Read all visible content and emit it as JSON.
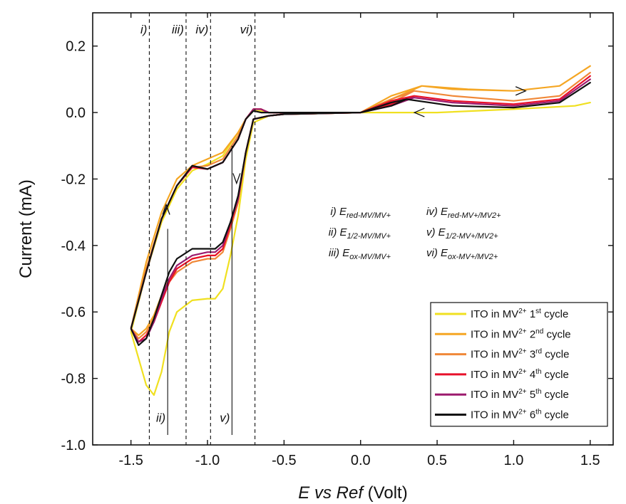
{
  "chart_data": {
    "type": "line",
    "xlabel": {
      "italic": "E vs Ref",
      "normal": " (Volt)"
    },
    "ylabel": "Current (mA)",
    "xlim": [
      -1.75,
      1.65
    ],
    "ylim": [
      -1.0,
      0.3
    ],
    "xticks": [
      -1.5,
      -1.0,
      -0.5,
      0.0,
      0.5,
      1.0,
      1.5
    ],
    "xtick_labels": [
      "-1.5",
      "-1.0",
      "-0.5",
      "0.0",
      "0.5",
      "1.0",
      "1.5"
    ],
    "yticks": [
      -1.0,
      -0.8,
      -0.6,
      -0.4,
      -0.2,
      0.0,
      0.2
    ],
    "ytick_labels": [
      "-1.0",
      "-0.8",
      "-0.6",
      "-0.4",
      "-0.2",
      "0.0",
      "0.2"
    ],
    "grid": false,
    "legend_position": "bottom-right",
    "series": [
      {
        "name": "ITO in MV2+ 1st cycle",
        "legend": {
          "pre": "ITO in MV",
          "sup1": "2+",
          "mid": " 1",
          "sup2": "st",
          "post": " cycle"
        },
        "color": "#f0e020",
        "x": [
          -1.5,
          -1.45,
          -1.4,
          -1.35,
          -1.3,
          -1.25,
          -1.2,
          -1.1,
          -1.0,
          -0.95,
          -0.9,
          -0.85,
          -0.8,
          -0.75,
          -0.7,
          -0.6,
          -0.5,
          0.0,
          0.5,
          1.0,
          1.4,
          1.5,
          1.4,
          1.0,
          0.5,
          0.0,
          -0.5,
          -0.6,
          -0.65,
          -0.7,
          -0.75,
          -0.8,
          -0.9,
          -1.0,
          -1.1,
          -1.2,
          -1.3,
          -1.4,
          -1.5
        ],
        "y": [
          -0.66,
          -0.74,
          -0.82,
          -0.85,
          -0.78,
          -0.66,
          -0.6,
          -0.565,
          -0.56,
          -0.56,
          -0.53,
          -0.43,
          -0.31,
          -0.14,
          -0.03,
          -0.01,
          -0.005,
          0.0,
          0.0,
          0.01,
          0.02,
          0.03,
          0.02,
          0.01,
          0.0,
          0.0,
          0.0,
          0.0,
          0.005,
          0.005,
          -0.02,
          -0.06,
          -0.13,
          -0.155,
          -0.175,
          -0.23,
          -0.33,
          -0.48,
          -0.66
        ]
      },
      {
        "name": "ITO in MV2+ 2nd cycle",
        "legend": {
          "pre": "ITO in MV",
          "sup1": "2+",
          "mid": " 2",
          "sup2": "nd",
          "post": " cycle"
        },
        "color": "#f5a623",
        "x": [
          -1.5,
          -1.45,
          -1.4,
          -1.35,
          -1.3,
          -1.25,
          -1.2,
          -1.1,
          -1.0,
          -0.95,
          -0.9,
          -0.85,
          -0.8,
          -0.75,
          -0.7,
          -0.6,
          -0.5,
          0.0,
          0.2,
          0.4,
          0.7,
          1.0,
          1.3,
          1.5,
          1.3,
          1.0,
          0.6,
          0.4,
          0.2,
          0.0,
          -0.5,
          -0.6,
          -0.65,
          -0.7,
          -0.75,
          -0.8,
          -0.9,
          -1.0,
          -1.1,
          -1.2,
          -1.3,
          -1.4,
          -1.5
        ],
        "y": [
          -0.65,
          -0.67,
          -0.65,
          -0.61,
          -0.55,
          -0.5,
          -0.47,
          -0.44,
          -0.43,
          -0.43,
          -0.41,
          -0.35,
          -0.27,
          -0.12,
          -0.02,
          -0.01,
          -0.005,
          0.0,
          0.05,
          0.08,
          0.07,
          0.065,
          0.08,
          0.14,
          0.08,
          0.065,
          0.07,
          0.08,
          0.04,
          0.0,
          0.0,
          0.0,
          0.01,
          0.01,
          -0.02,
          -0.06,
          -0.12,
          -0.14,
          -0.16,
          -0.2,
          -0.3,
          -0.45,
          -0.65
        ]
      },
      {
        "name": "ITO in MV2+ 3rd cycle",
        "legend": {
          "pre": "ITO in MV",
          "sup1": "2+",
          "mid": " 3",
          "sup2": "rd",
          "post": " cycle"
        },
        "color": "#f08838",
        "x": [
          -1.5,
          -1.45,
          -1.4,
          -1.35,
          -1.3,
          -1.25,
          -1.2,
          -1.1,
          -1.0,
          -0.95,
          -0.9,
          -0.85,
          -0.8,
          -0.75,
          -0.7,
          -0.6,
          -0.5,
          0.0,
          0.2,
          0.35,
          0.6,
          1.0,
          1.3,
          1.5,
          1.3,
          1.0,
          0.6,
          0.35,
          0.2,
          0.0,
          -0.5,
          -0.6,
          -0.65,
          -0.7,
          -0.75,
          -0.8,
          -0.9,
          -1.0,
          -1.1,
          -1.2,
          -1.3,
          -1.4,
          -1.5
        ],
        "y": [
          -0.65,
          -0.68,
          -0.66,
          -0.62,
          -0.56,
          -0.51,
          -0.48,
          -0.45,
          -0.44,
          -0.44,
          -0.42,
          -0.35,
          -0.27,
          -0.12,
          -0.02,
          -0.01,
          -0.005,
          0.0,
          0.04,
          0.065,
          0.05,
          0.035,
          0.05,
          0.12,
          0.05,
          0.035,
          0.05,
          0.065,
          0.03,
          0.0,
          0.0,
          0.0,
          0.01,
          0.01,
          -0.02,
          -0.07,
          -0.14,
          -0.16,
          -0.165,
          -0.22,
          -0.32,
          -0.47,
          -0.65
        ]
      },
      {
        "name": "ITO in MV2+ 4th cycle",
        "legend": {
          "pre": "ITO in MV",
          "sup1": "2+",
          "mid": " 4",
          "sup2": "th",
          "post": " cycle"
        },
        "color": "#e8102a",
        "x": [
          -1.5,
          -1.45,
          -1.4,
          -1.35,
          -1.3,
          -1.25,
          -1.2,
          -1.1,
          -1.0,
          -0.95,
          -0.9,
          -0.85,
          -0.8,
          -0.75,
          -0.7,
          -0.6,
          -0.5,
          0.0,
          0.2,
          0.35,
          0.6,
          1.0,
          1.3,
          1.5,
          1.3,
          1.0,
          0.6,
          0.35,
          0.2,
          0.0,
          -0.5,
          -0.6,
          -0.65,
          -0.7,
          -0.75,
          -0.8,
          -0.9,
          -1.0,
          -1.1,
          -1.2,
          -1.3,
          -1.4,
          -1.5
        ],
        "y": [
          -0.65,
          -0.69,
          -0.67,
          -0.63,
          -0.57,
          -0.51,
          -0.47,
          -0.44,
          -0.43,
          -0.43,
          -0.41,
          -0.34,
          -0.26,
          -0.12,
          -0.02,
          -0.01,
          -0.005,
          0.0,
          0.035,
          0.05,
          0.035,
          0.025,
          0.04,
          0.11,
          0.04,
          0.025,
          0.035,
          0.05,
          0.025,
          0.0,
          0.0,
          0.0,
          0.01,
          0.01,
          -0.02,
          -0.08,
          -0.15,
          -0.17,
          -0.165,
          -0.22,
          -0.32,
          -0.48,
          -0.65
        ]
      },
      {
        "name": "ITO in MV2+ 5th cycle",
        "legend": {
          "pre": "ITO in MV",
          "sup1": "2+",
          "mid": " 5",
          "sup2": "th",
          "post": " cycle"
        },
        "color": "#9c1a6e",
        "x": [
          -1.5,
          -1.45,
          -1.4,
          -1.35,
          -1.3,
          -1.25,
          -1.2,
          -1.1,
          -1.0,
          -0.95,
          -0.9,
          -0.85,
          -0.8,
          -0.75,
          -0.7,
          -0.6,
          -0.5,
          0.0,
          0.2,
          0.35,
          0.6,
          1.0,
          1.3,
          1.5,
          1.3,
          1.0,
          0.6,
          0.35,
          0.2,
          0.0,
          -0.5,
          -0.6,
          -0.65,
          -0.7,
          -0.75,
          -0.8,
          -0.9,
          -1.0,
          -1.1,
          -1.2,
          -1.3,
          -1.4,
          -1.5
        ],
        "y": [
          -0.65,
          -0.69,
          -0.68,
          -0.63,
          -0.56,
          -0.5,
          -0.46,
          -0.43,
          -0.42,
          -0.42,
          -0.4,
          -0.33,
          -0.26,
          -0.12,
          -0.02,
          -0.01,
          -0.005,
          0.0,
          0.03,
          0.045,
          0.03,
          0.02,
          0.035,
          0.1,
          0.035,
          0.02,
          0.03,
          0.045,
          0.02,
          0.0,
          0.0,
          0.0,
          0.01,
          0.01,
          -0.02,
          -0.08,
          -0.15,
          -0.17,
          -0.16,
          -0.22,
          -0.32,
          -0.48,
          -0.65
        ]
      },
      {
        "name": "ITO in MV2+ 6th cycle",
        "legend": {
          "pre": "ITO in MV",
          "sup1": "2+",
          "mid": " 6",
          "sup2": "th",
          "post": " cycle"
        },
        "color": "#111111",
        "x": [
          -1.5,
          -1.45,
          -1.4,
          -1.35,
          -1.3,
          -1.25,
          -1.2,
          -1.1,
          -1.0,
          -0.95,
          -0.9,
          -0.85,
          -0.8,
          -0.75,
          -0.7,
          -0.6,
          -0.5,
          0.0,
          0.2,
          0.3,
          0.6,
          1.0,
          1.3,
          1.5,
          1.3,
          1.0,
          0.6,
          0.3,
          0.2,
          0.0,
          -0.5,
          -0.6,
          -0.65,
          -0.7,
          -0.75,
          -0.8,
          -0.9,
          -1.0,
          -1.1,
          -1.2,
          -1.3,
          -1.4,
          -1.5
        ],
        "y": [
          -0.65,
          -0.7,
          -0.68,
          -0.62,
          -0.55,
          -0.48,
          -0.44,
          -0.41,
          -0.41,
          -0.41,
          -0.39,
          -0.33,
          -0.25,
          -0.12,
          -0.02,
          -0.01,
          -0.005,
          0.0,
          0.03,
          0.04,
          0.02,
          0.015,
          0.03,
          0.09,
          0.03,
          0.015,
          0.02,
          0.04,
          0.02,
          0.0,
          0.0,
          0.0,
          0.0,
          0.005,
          -0.02,
          -0.08,
          -0.15,
          -0.17,
          -0.16,
          -0.22,
          -0.32,
          -0.48,
          -0.65
        ]
      }
    ],
    "vlines": [
      {
        "x": -1.38,
        "label": "i)",
        "label_pos": "top"
      },
      {
        "x": -1.14,
        "label": "iii)",
        "label_pos": "top"
      },
      {
        "x": -0.98,
        "label": "iv)",
        "label_pos": "top"
      },
      {
        "x": -0.69,
        "label": "vi)",
        "label_pos": "top"
      }
    ],
    "solid_lines": [
      {
        "x": -1.26,
        "y0": -0.97,
        "y1": -0.35,
        "label": "ii)"
      },
      {
        "x": -0.84,
        "y0": -0.97,
        "y1": -0.1,
        "label": "v)"
      }
    ],
    "arrows": [
      {
        "x": 1.05,
        "y": 0.065,
        "dir": "right"
      },
      {
        "x": 0.38,
        "y": 0.0,
        "dir": "left"
      },
      {
        "x": -1.27,
        "y": -0.29,
        "dir": "up"
      },
      {
        "x": -0.81,
        "y": -0.2,
        "dir": "down"
      }
    ],
    "annotation": [
      {
        "num": "i)",
        "base": "E",
        "sub": "red-MV/MV+",
        "num2": "iv)",
        "base2": "E",
        "sub2": "red-MV+/MV2+"
      },
      {
        "num": "ii)",
        "base": "E",
        "sub": "1/2-MV/MV+",
        "num2": "v)",
        "base2": "E",
        "sub2": "1/2-MV+/MV2+"
      },
      {
        "num": "iii)",
        "base": "E",
        "sub": "ox-MV/MV+",
        "num2": "vi)",
        "base2": "E",
        "sub2": "ox-MV+/MV2+"
      }
    ]
  }
}
